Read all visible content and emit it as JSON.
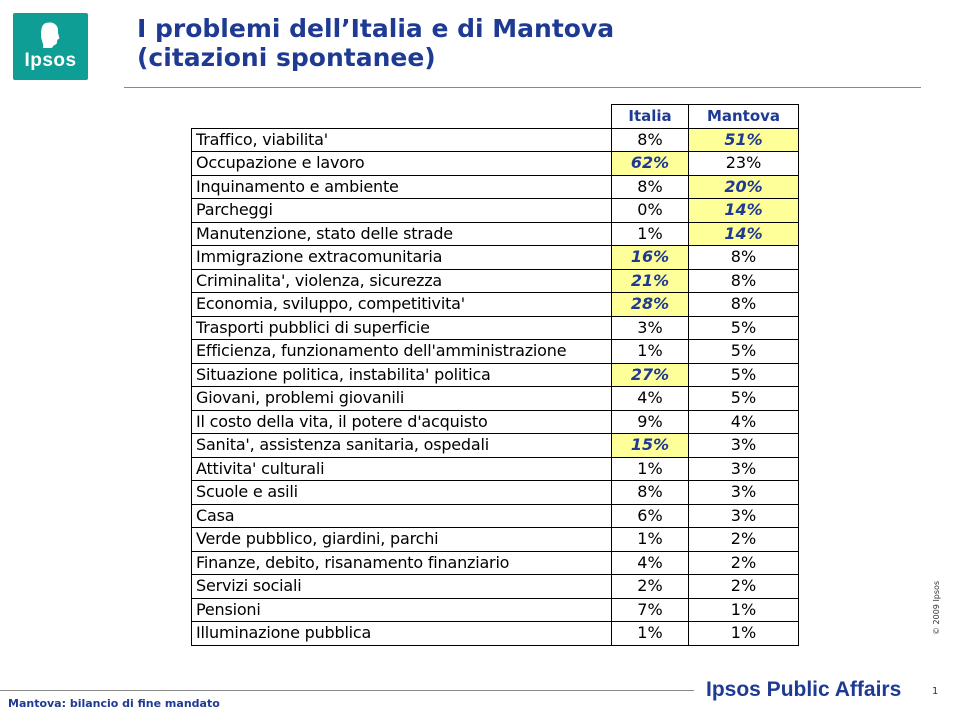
{
  "logo": {
    "text": "Ipsos"
  },
  "title": {
    "line1": "I problemi dell’Italia e di Mantova",
    "line2": "(citazioni spontanee)"
  },
  "table": {
    "headers": [
      "Italia",
      "Mantova"
    ],
    "rows": [
      {
        "label": "Traffico, viabilita'",
        "italia": "8%",
        "mantova": "51%",
        "hl": "mantova"
      },
      {
        "label": "Occupazione e lavoro",
        "italia": "62%",
        "mantova": "23%",
        "hl": "italia"
      },
      {
        "label": "Inquinamento e ambiente",
        "italia": "8%",
        "mantova": "20%",
        "hl": "mantova"
      },
      {
        "label": "Parcheggi",
        "italia": "0%",
        "mantova": "14%",
        "hl": "mantova"
      },
      {
        "label": "Manutenzione, stato delle strade",
        "italia": "1%",
        "mantova": "14%",
        "hl": "mantova"
      },
      {
        "label": "Immigrazione extracomunitaria",
        "italia": "16%",
        "mantova": "8%",
        "hl": "italia"
      },
      {
        "label": "Criminalita', violenza, sicurezza",
        "italia": "21%",
        "mantova": "8%",
        "hl": "italia"
      },
      {
        "label": "Economia, sviluppo, competitivita'",
        "italia": "28%",
        "mantova": "8%",
        "hl": "italia"
      },
      {
        "label": "Trasporti pubblici di superficie",
        "italia": "3%",
        "mantova": "5%",
        "hl": ""
      },
      {
        "label": "Efficienza, funzionamento dell'amministrazione",
        "italia": "1%",
        "mantova": "5%",
        "hl": ""
      },
      {
        "label": "Situazione politica, instabilita' politica",
        "italia": "27%",
        "mantova": "5%",
        "hl": "italia"
      },
      {
        "label": "Giovani, problemi giovanili",
        "italia": "4%",
        "mantova": "5%",
        "hl": ""
      },
      {
        "label": "Il costo della vita, il potere d'acquisto",
        "italia": "9%",
        "mantova": "4%",
        "hl": ""
      },
      {
        "label": "Sanita', assistenza sanitaria, ospedali",
        "italia": "15%",
        "mantova": "3%",
        "hl": "italia"
      },
      {
        "label": "Attivita' culturali",
        "italia": "1%",
        "mantova": "3%",
        "hl": ""
      },
      {
        "label": "Scuole e asili",
        "italia": "8%",
        "mantova": "3%",
        "hl": ""
      },
      {
        "label": "Casa",
        "italia": "6%",
        "mantova": "3%",
        "hl": ""
      },
      {
        "label": "Verde pubblico, giardini, parchi",
        "italia": "1%",
        "mantova": "2%",
        "hl": ""
      },
      {
        "label": "Finanze, debito, risanamento finanziario",
        "italia": "4%",
        "mantova": "2%",
        "hl": ""
      },
      {
        "label": "Servizi sociali",
        "italia": "2%",
        "mantova": "2%",
        "hl": ""
      },
      {
        "label": "Pensioni",
        "italia": "7%",
        "mantova": "1%",
        "hl": ""
      },
      {
        "label": "Illuminazione pubblica",
        "italia": "1%",
        "mantova": "1%",
        "hl": ""
      }
    ]
  },
  "copyright": "© 2009 Ipsos",
  "footer": {
    "text": "Mantova: bilancio di fine mandato"
  },
  "brand": "Ipsos Public Affairs",
  "page_number": "1",
  "colors": {
    "accent": "#1f3a93",
    "highlight": "#ffff99",
    "logo": "#0f9e96"
  }
}
